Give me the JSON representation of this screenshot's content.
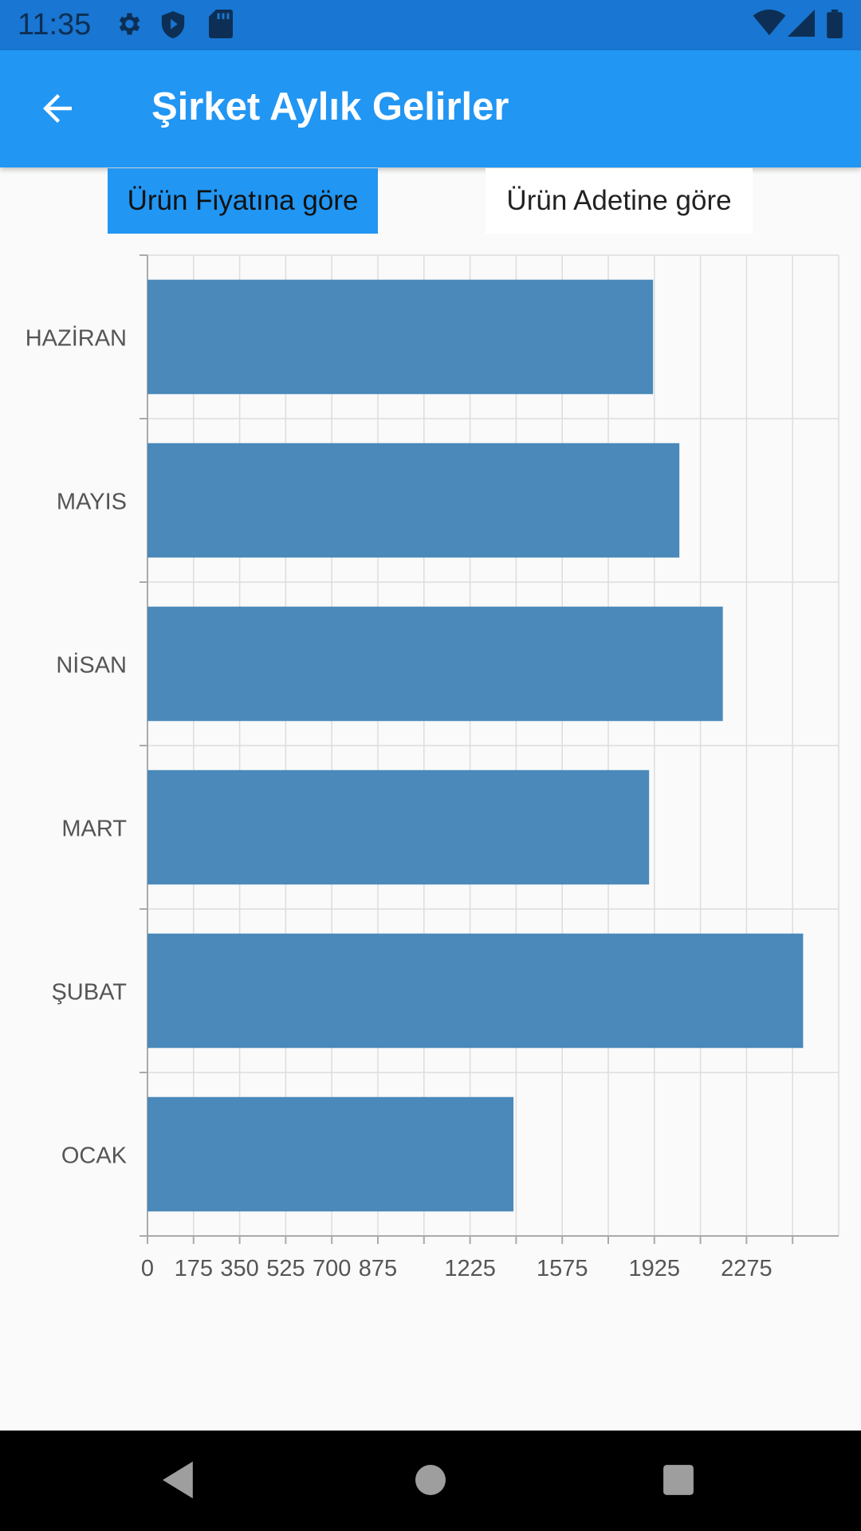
{
  "status_bar": {
    "time": "11:35",
    "icons": [
      "gear-icon",
      "shield-icon",
      "sd-card-icon",
      "wifi-icon",
      "signal-icon",
      "battery-icon"
    ]
  },
  "app_bar": {
    "title": "Şirket Aylık Gelirler",
    "back_icon": "arrow-left-icon"
  },
  "tabs": [
    {
      "label": "Ürün Fiyatına göre",
      "active": true
    },
    {
      "label": "Ürün Adetine göre",
      "active": false
    }
  ],
  "colors": {
    "app_bar": "#2196f3",
    "status_bar": "#1976d2",
    "bar": "#4a89ba",
    "active_tab": "#2196f3"
  },
  "chart_data": {
    "type": "bar",
    "orientation": "horizontal",
    "categories": [
      "HAZİRAN",
      "MAYIS",
      "NİSAN",
      "MART",
      "ŞUBAT",
      "OCAK"
    ],
    "values": [
      1920,
      2020,
      2185,
      1905,
      2490,
      1390
    ],
    "xlim": [
      0,
      2625
    ],
    "tick_labels": [
      "0",
      "175",
      "350",
      "525",
      "700",
      "875",
      "1225",
      "1575",
      "1925",
      "2275"
    ],
    "tick_values": [
      0,
      175,
      350,
      525,
      700,
      875,
      1225,
      1575,
      1925,
      2275
    ],
    "minor_ticks": [
      1050,
      1400,
      1750,
      2100,
      2450
    ],
    "grid": true,
    "title": "",
    "xlabel": "",
    "ylabel": ""
  },
  "nav_bar": {
    "buttons": [
      "back-triangle-icon",
      "home-circle-icon",
      "recents-square-icon"
    ]
  }
}
